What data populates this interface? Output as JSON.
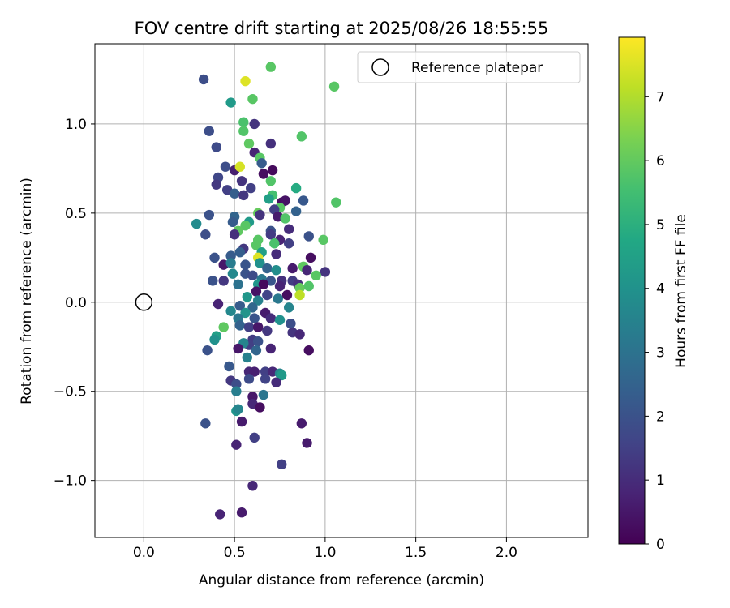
{
  "chart_data": {
    "type": "scatter",
    "title": "FOV centre drift starting at 2025/08/26 18:55:55",
    "xlabel": "Angular distance from reference (arcmin)",
    "ylabel": "Rotation from reference (arcmin)",
    "xlim": [
      -0.27,
      2.45
    ],
    "ylim": [
      -1.32,
      1.45
    ],
    "xticks": [
      0.0,
      0.5,
      1.0,
      1.5,
      2.0
    ],
    "xtick_labels": [
      "0.0",
      "0.5",
      "1.0",
      "1.5",
      "2.0"
    ],
    "yticks": [
      -1.0,
      -0.5,
      0.0,
      0.5,
      1.0
    ],
    "ytick_labels": [
      "−1.0",
      "−0.5",
      "0.0",
      "0.5",
      "1.0"
    ],
    "grid": true,
    "legend": {
      "placement": "top-right",
      "entries": [
        "Reference platepar"
      ]
    },
    "reference_point": {
      "x": 0.0,
      "y": 0.0
    },
    "colorbar": {
      "label": "Hours from first FF file",
      "colormap": "viridis",
      "range": [
        0,
        8
      ],
      "ticks": [
        0,
        1,
        2,
        3,
        4,
        5,
        6,
        7
      ],
      "tick_labels": [
        "0",
        "1",
        "2",
        "3",
        "4",
        "5",
        "6",
        "7"
      ]
    },
    "points": [
      {
        "x": 0.33,
        "y": 1.25,
        "c": 1.9
      },
      {
        "x": 0.7,
        "y": 1.32,
        "c": 5.9
      },
      {
        "x": 0.56,
        "y": 1.24,
        "c": 7.6
      },
      {
        "x": 1.05,
        "y": 1.21,
        "c": 5.9
      },
      {
        "x": 0.48,
        "y": 1.12,
        "c": 4.3
      },
      {
        "x": 0.6,
        "y": 1.14,
        "c": 5.9
      },
      {
        "x": 0.36,
        "y": 0.96,
        "c": 1.9
      },
      {
        "x": 0.55,
        "y": 1.01,
        "c": 5.7
      },
      {
        "x": 0.61,
        "y": 1.0,
        "c": 1.2
      },
      {
        "x": 0.55,
        "y": 0.96,
        "c": 5.8
      },
      {
        "x": 0.87,
        "y": 0.93,
        "c": 5.8
      },
      {
        "x": 0.4,
        "y": 0.87,
        "c": 1.8
      },
      {
        "x": 0.58,
        "y": 0.89,
        "c": 6.0
      },
      {
        "x": 0.7,
        "y": 0.89,
        "c": 1.1
      },
      {
        "x": 0.61,
        "y": 0.84,
        "c": 0.8
      },
      {
        "x": 0.64,
        "y": 0.81,
        "c": 5.9
      },
      {
        "x": 0.65,
        "y": 0.78,
        "c": 2.3
      },
      {
        "x": 0.45,
        "y": 0.76,
        "c": 1.9
      },
      {
        "x": 0.5,
        "y": 0.74,
        "c": 0.7
      },
      {
        "x": 0.53,
        "y": 0.76,
        "c": 7.5
      },
      {
        "x": 0.66,
        "y": 0.72,
        "c": 0.3
      },
      {
        "x": 0.71,
        "y": 0.74,
        "c": 0.2
      },
      {
        "x": 0.41,
        "y": 0.7,
        "c": 1.7
      },
      {
        "x": 0.54,
        "y": 0.68,
        "c": 1.2
      },
      {
        "x": 0.59,
        "y": 0.64,
        "c": 1.5
      },
      {
        "x": 0.4,
        "y": 0.66,
        "c": 1.3
      },
      {
        "x": 0.46,
        "y": 0.63,
        "c": 1.5
      },
      {
        "x": 0.5,
        "y": 0.61,
        "c": 2.4
      },
      {
        "x": 0.55,
        "y": 0.6,
        "c": 1.3
      },
      {
        "x": 0.7,
        "y": 0.68,
        "c": 5.8
      },
      {
        "x": 0.71,
        "y": 0.6,
        "c": 5.6
      },
      {
        "x": 0.69,
        "y": 0.58,
        "c": 4.5
      },
      {
        "x": 0.76,
        "y": 0.56,
        "c": 0.3
      },
      {
        "x": 0.78,
        "y": 0.57,
        "c": 0.4
      },
      {
        "x": 0.84,
        "y": 0.64,
        "c": 4.9
      },
      {
        "x": 0.88,
        "y": 0.57,
        "c": 2.2
      },
      {
        "x": 1.06,
        "y": 0.56,
        "c": 5.8
      },
      {
        "x": 0.75,
        "y": 0.53,
        "c": 5.9
      },
      {
        "x": 0.63,
        "y": 0.5,
        "c": 6.1
      },
      {
        "x": 0.72,
        "y": 0.52,
        "c": 1.5
      },
      {
        "x": 0.64,
        "y": 0.49,
        "c": 1.2
      },
      {
        "x": 0.74,
        "y": 0.48,
        "c": 0.6
      },
      {
        "x": 0.84,
        "y": 0.51,
        "c": 2.5
      },
      {
        "x": 0.36,
        "y": 0.49,
        "c": 2.0
      },
      {
        "x": 0.5,
        "y": 0.48,
        "c": 2.6
      },
      {
        "x": 0.29,
        "y": 0.44,
        "c": 3.8
      },
      {
        "x": 0.49,
        "y": 0.45,
        "c": 2.3
      },
      {
        "x": 0.58,
        "y": 0.45,
        "c": 4.3
      },
      {
        "x": 0.56,
        "y": 0.43,
        "c": 5.9
      },
      {
        "x": 0.78,
        "y": 0.47,
        "c": 5.8
      },
      {
        "x": 0.8,
        "y": 0.41,
        "c": 1.0
      },
      {
        "x": 0.7,
        "y": 0.4,
        "c": 2.0
      },
      {
        "x": 0.52,
        "y": 0.4,
        "c": 6.0
      },
      {
        "x": 0.5,
        "y": 0.38,
        "c": 1.1
      },
      {
        "x": 0.34,
        "y": 0.38,
        "c": 1.9
      },
      {
        "x": 0.63,
        "y": 0.35,
        "c": 5.9
      },
      {
        "x": 0.7,
        "y": 0.38,
        "c": 1.4
      },
      {
        "x": 0.75,
        "y": 0.35,
        "c": 0.8
      },
      {
        "x": 0.62,
        "y": 0.32,
        "c": 5.9
      },
      {
        "x": 0.72,
        "y": 0.33,
        "c": 5.7
      },
      {
        "x": 0.8,
        "y": 0.33,
        "c": 1.5
      },
      {
        "x": 0.91,
        "y": 0.37,
        "c": 2.0
      },
      {
        "x": 0.99,
        "y": 0.35,
        "c": 5.9
      },
      {
        "x": 0.55,
        "y": 0.3,
        "c": 1.3
      },
      {
        "x": 0.53,
        "y": 0.28,
        "c": 2.4
      },
      {
        "x": 0.65,
        "y": 0.28,
        "c": 4.5
      },
      {
        "x": 0.39,
        "y": 0.25,
        "c": 2.0
      },
      {
        "x": 0.48,
        "y": 0.26,
        "c": 2.3
      },
      {
        "x": 0.63,
        "y": 0.25,
        "c": 7.6
      },
      {
        "x": 0.73,
        "y": 0.27,
        "c": 1.0
      },
      {
        "x": 0.92,
        "y": 0.25,
        "c": 0.3
      },
      {
        "x": 0.44,
        "y": 0.21,
        "c": 0.5
      },
      {
        "x": 0.48,
        "y": 0.22,
        "c": 3.3
      },
      {
        "x": 0.56,
        "y": 0.21,
        "c": 2.1
      },
      {
        "x": 0.64,
        "y": 0.22,
        "c": 4.0
      },
      {
        "x": 0.68,
        "y": 0.19,
        "c": 2.5
      },
      {
        "x": 0.73,
        "y": 0.18,
        "c": 3.9
      },
      {
        "x": 0.82,
        "y": 0.19,
        "c": 0.6
      },
      {
        "x": 0.88,
        "y": 0.2,
        "c": 6.0
      },
      {
        "x": 0.9,
        "y": 0.18,
        "c": 0.9
      },
      {
        "x": 1.0,
        "y": 0.17,
        "c": 1.2
      },
      {
        "x": 0.49,
        "y": 0.16,
        "c": 3.7
      },
      {
        "x": 0.56,
        "y": 0.16,
        "c": 2.0
      },
      {
        "x": 0.6,
        "y": 0.15,
        "c": 1.8
      },
      {
        "x": 0.65,
        "y": 0.13,
        "c": 3.2
      },
      {
        "x": 0.7,
        "y": 0.12,
        "c": 2.1
      },
      {
        "x": 0.76,
        "y": 0.12,
        "c": 1.1
      },
      {
        "x": 0.82,
        "y": 0.12,
        "c": 1.4
      },
      {
        "x": 0.95,
        "y": 0.15,
        "c": 5.9
      },
      {
        "x": 0.38,
        "y": 0.12,
        "c": 2.0
      },
      {
        "x": 0.44,
        "y": 0.12,
        "c": 1.3
      },
      {
        "x": 0.52,
        "y": 0.1,
        "c": 3.0
      },
      {
        "x": 0.63,
        "y": 0.1,
        "c": 4.2
      },
      {
        "x": 0.66,
        "y": 0.1,
        "c": 0.2
      },
      {
        "x": 0.75,
        "y": 0.09,
        "c": 0.8
      },
      {
        "x": 0.85,
        "y": 0.1,
        "c": 1.1
      },
      {
        "x": 0.86,
        "y": 0.08,
        "c": 6.1
      },
      {
        "x": 0.91,
        "y": 0.09,
        "c": 5.8
      },
      {
        "x": 0.62,
        "y": 0.06,
        "c": 0.4
      },
      {
        "x": 0.68,
        "y": 0.04,
        "c": 1.6
      },
      {
        "x": 0.79,
        "y": 0.04,
        "c": 0.3
      },
      {
        "x": 0.86,
        "y": 0.04,
        "c": 7.2
      },
      {
        "x": 0.57,
        "y": 0.03,
        "c": 4.2
      },
      {
        "x": 0.63,
        "y": 0.01,
        "c": 3.5
      },
      {
        "x": 0.74,
        "y": 0.02,
        "c": 3.2
      },
      {
        "x": 0.41,
        "y": -0.01,
        "c": 0.8
      },
      {
        "x": 0.53,
        "y": -0.02,
        "c": 2.3
      },
      {
        "x": 0.6,
        "y": -0.03,
        "c": 2.7
      },
      {
        "x": 0.8,
        "y": -0.03,
        "c": 3.6
      },
      {
        "x": 0.48,
        "y": -0.05,
        "c": 3.7
      },
      {
        "x": 0.56,
        "y": -0.06,
        "c": 4.1
      },
      {
        "x": 0.67,
        "y": -0.06,
        "c": 0.6
      },
      {
        "x": 0.52,
        "y": -0.09,
        "c": 3.2
      },
      {
        "x": 0.61,
        "y": -0.09,
        "c": 2.1
      },
      {
        "x": 0.7,
        "y": -0.09,
        "c": 1.0
      },
      {
        "x": 0.75,
        "y": -0.1,
        "c": 4.0
      },
      {
        "x": 0.53,
        "y": -0.13,
        "c": 2.5
      },
      {
        "x": 0.44,
        "y": -0.14,
        "c": 6.0
      },
      {
        "x": 0.58,
        "y": -0.14,
        "c": 1.5
      },
      {
        "x": 0.63,
        "y": -0.14,
        "c": 0.5
      },
      {
        "x": 0.81,
        "y": -0.12,
        "c": 1.9
      },
      {
        "x": 0.68,
        "y": -0.16,
        "c": 1.3
      },
      {
        "x": 0.82,
        "y": -0.17,
        "c": 1.2
      },
      {
        "x": 0.86,
        "y": -0.18,
        "c": 0.9
      },
      {
        "x": 0.4,
        "y": -0.19,
        "c": 4.5
      },
      {
        "x": 0.39,
        "y": -0.21,
        "c": 4.0
      },
      {
        "x": 0.6,
        "y": -0.21,
        "c": 1.4
      },
      {
        "x": 0.58,
        "y": -0.24,
        "c": 1.5
      },
      {
        "x": 0.63,
        "y": -0.22,
        "c": 2.0
      },
      {
        "x": 0.55,
        "y": -0.23,
        "c": 3.6
      },
      {
        "x": 0.35,
        "y": -0.27,
        "c": 2.0
      },
      {
        "x": 0.52,
        "y": -0.26,
        "c": 0.5
      },
      {
        "x": 0.62,
        "y": -0.27,
        "c": 2.6
      },
      {
        "x": 0.7,
        "y": -0.26,
        "c": 0.8
      },
      {
        "x": 0.91,
        "y": -0.27,
        "c": 0.3
      },
      {
        "x": 0.57,
        "y": -0.31,
        "c": 3.5
      },
      {
        "x": 0.47,
        "y": -0.36,
        "c": 2.2
      },
      {
        "x": 0.58,
        "y": -0.39,
        "c": 0.9
      },
      {
        "x": 0.61,
        "y": -0.39,
        "c": 0.7
      },
      {
        "x": 0.67,
        "y": -0.39,
        "c": 1.5
      },
      {
        "x": 0.71,
        "y": -0.39,
        "c": 0.9
      },
      {
        "x": 0.75,
        "y": -0.4,
        "c": 3.6
      },
      {
        "x": 0.76,
        "y": -0.41,
        "c": 4.3
      },
      {
        "x": 0.58,
        "y": -0.43,
        "c": 1.8
      },
      {
        "x": 0.48,
        "y": -0.44,
        "c": 1.3
      },
      {
        "x": 0.51,
        "y": -0.46,
        "c": 1.9
      },
      {
        "x": 0.67,
        "y": -0.43,
        "c": 1.6
      },
      {
        "x": 0.73,
        "y": -0.45,
        "c": 1.0
      },
      {
        "x": 0.51,
        "y": -0.5,
        "c": 3.4
      },
      {
        "x": 0.6,
        "y": -0.53,
        "c": 0.5
      },
      {
        "x": 0.66,
        "y": -0.52,
        "c": 3.1
      },
      {
        "x": 0.6,
        "y": -0.57,
        "c": 0.9
      },
      {
        "x": 0.64,
        "y": -0.59,
        "c": 0.3
      },
      {
        "x": 0.51,
        "y": -0.61,
        "c": 4.1
      },
      {
        "x": 0.52,
        "y": -0.6,
        "c": 3.6
      },
      {
        "x": 0.54,
        "y": -0.67,
        "c": 0.6
      },
      {
        "x": 0.34,
        "y": -0.68,
        "c": 2.0
      },
      {
        "x": 0.87,
        "y": -0.68,
        "c": 0.6
      },
      {
        "x": 0.61,
        "y": -0.76,
        "c": 1.5
      },
      {
        "x": 0.51,
        "y": -0.8,
        "c": 0.8
      },
      {
        "x": 0.9,
        "y": -0.79,
        "c": 0.6
      },
      {
        "x": 0.76,
        "y": -0.91,
        "c": 1.5
      },
      {
        "x": 0.6,
        "y": -1.03,
        "c": 0.9
      },
      {
        "x": 0.54,
        "y": -1.18,
        "c": 0.6
      },
      {
        "x": 0.42,
        "y": -1.19,
        "c": 0.8
      }
    ]
  }
}
